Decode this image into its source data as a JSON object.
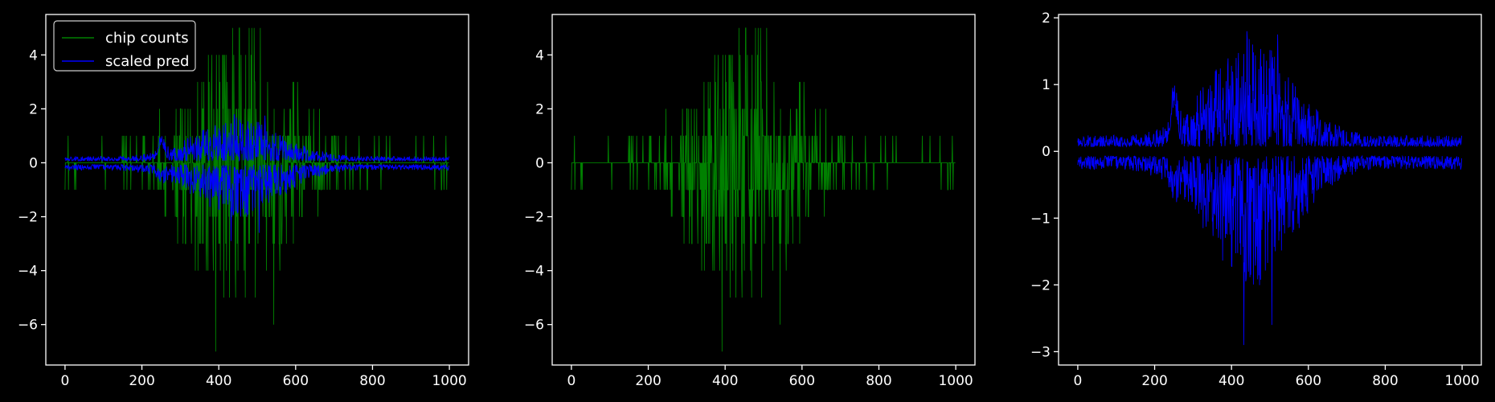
{
  "figure": {
    "background": "#000000",
    "foreground": "#ffffff"
  },
  "chart_data": [
    {
      "type": "line",
      "title": "",
      "xlabel": "",
      "ylabel": "",
      "xlim": [
        -50,
        1050
      ],
      "ylim": [
        -7.5,
        5.5
      ],
      "xticks": [
        0,
        200,
        400,
        600,
        800,
        1000
      ],
      "yticks": [
        -6,
        -4,
        -2,
        0,
        2,
        4
      ],
      "xtick_labels": [
        "0",
        "200",
        "400",
        "600",
        "800",
        "1000"
      ],
      "ytick_labels": [
        "−6",
        "−4",
        "−2",
        "0",
        "2",
        "4"
      ],
      "grid": false,
      "legend": {
        "placement": "upper-left",
        "entries": [
          {
            "label": "chip counts",
            "color": "#008000"
          },
          {
            "label": "scaled pred",
            "color": "#0000ff"
          }
        ]
      },
      "series": [
        {
          "name": "chip counts",
          "color": "#008000",
          "kind": "counts",
          "n": 1000,
          "envelope_max": 5,
          "envelope_min": -7,
          "center": 450
        },
        {
          "name": "scaled pred",
          "color": "#0000ff",
          "kind": "pred",
          "n": 1000,
          "upper_max": 1.8,
          "lower_min": -2.9,
          "center": 450
        }
      ]
    },
    {
      "type": "line",
      "title": "",
      "xlabel": "",
      "ylabel": "",
      "xlim": [
        -50,
        1050
      ],
      "ylim": [
        -7.5,
        5.5
      ],
      "xticks": [
        0,
        200,
        400,
        600,
        800,
        1000
      ],
      "yticks": [
        -6,
        -4,
        -2,
        0,
        2,
        4
      ],
      "xtick_labels": [
        "0",
        "200",
        "400",
        "600",
        "800",
        "1000"
      ],
      "ytick_labels": [
        "−6",
        "−4",
        "−2",
        "0",
        "2",
        "4"
      ],
      "grid": false,
      "series": [
        {
          "name": "",
          "color": "#008000",
          "kind": "counts",
          "n": 1000,
          "envelope_max": 5,
          "envelope_min": -7,
          "center": 450
        }
      ]
    },
    {
      "type": "line",
      "title": "",
      "xlabel": "",
      "ylabel": "",
      "xlim": [
        -50,
        1050
      ],
      "ylim": [
        -3.2,
        2.05
      ],
      "xticks": [
        0,
        200,
        400,
        600,
        800,
        1000
      ],
      "yticks": [
        -3,
        -2,
        -1,
        0,
        1,
        2
      ],
      "xtick_labels": [
        "0",
        "200",
        "400",
        "600",
        "800",
        "1000"
      ],
      "ytick_labels": [
        "−3",
        "−2",
        "−1",
        "0",
        "1",
        "2"
      ],
      "grid": false,
      "series": [
        {
          "name": "",
          "color": "#0000ff",
          "kind": "pred",
          "n": 1000,
          "upper_max": 1.8,
          "lower_min": -2.9,
          "center": 450
        }
      ]
    }
  ]
}
